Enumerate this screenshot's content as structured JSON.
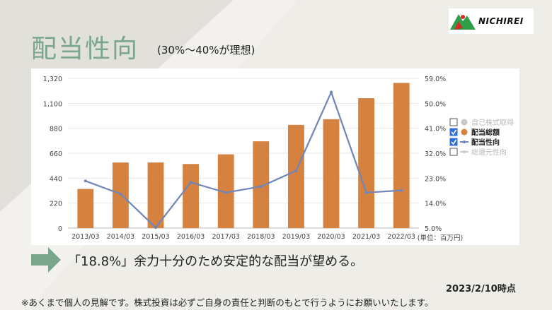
{
  "page": {
    "title": "配当性向",
    "subtitle": "(30%〜40%が理想)",
    "logo_text": "NICHIREI",
    "message": "「18.8%」余力十分のため安定的な配当が望める。",
    "date": "2023/2/10時点",
    "disclaimer": "※あくまで個人の見解です。株式投資は必ずご自身の責任と判断のもとで行うようにお願いいたします。"
  },
  "colors": {
    "title": "#7aa68c",
    "bar": "#d5813f",
    "line": "#6f86b8",
    "arrow": "#7aa68c",
    "logo_red": "#d42a2a",
    "logo_green": "#2f9e48"
  },
  "chart_data": {
    "type": "bar",
    "categories": [
      "2013/03",
      "2014/03",
      "2015/03",
      "2016/03",
      "2017/03",
      "2018/03",
      "2019/03",
      "2020/03",
      "2021/03",
      "2022/03"
    ],
    "series": [
      {
        "name": "配当総額",
        "type": "bar",
        "axis": "left",
        "values": [
          345,
          578,
          578,
          565,
          650,
          765,
          910,
          960,
          1145,
          1280
        ]
      },
      {
        "name": "配当性向",
        "type": "line",
        "axis": "right",
        "values": [
          22.0,
          17.3,
          5.2,
          21.5,
          17.8,
          20.0,
          25.7,
          54.0,
          17.8,
          18.6
        ]
      }
    ],
    "y_left": {
      "ticks": [
        "0",
        "220",
        "440",
        "660",
        "880",
        "1,100",
        "1,320"
      ],
      "ylim": [
        0,
        1320
      ]
    },
    "y_right": {
      "ticks": [
        "5.0%",
        "14.0%",
        "23.0%",
        "32.0%",
        "41.0%",
        "50.0%",
        "59.0%"
      ],
      "ylim": [
        5,
        59
      ]
    },
    "unit_label": "(単位：百万円)",
    "grid": true,
    "legend_position": "right",
    "legend": [
      {
        "label": "自己株式取得",
        "checked": false,
        "marker": "dot",
        "color": "#c8c8c8",
        "faded": true
      },
      {
        "label": "配当総額",
        "checked": true,
        "marker": "dot",
        "color": "#d5813f",
        "faded": false
      },
      {
        "label": "配当性向",
        "checked": true,
        "marker": "line",
        "color": "#6f86b8",
        "faded": false
      },
      {
        "label": "総還元性向",
        "checked": false,
        "marker": "line",
        "color": "#c8c8c8",
        "faded": true
      }
    ]
  }
}
